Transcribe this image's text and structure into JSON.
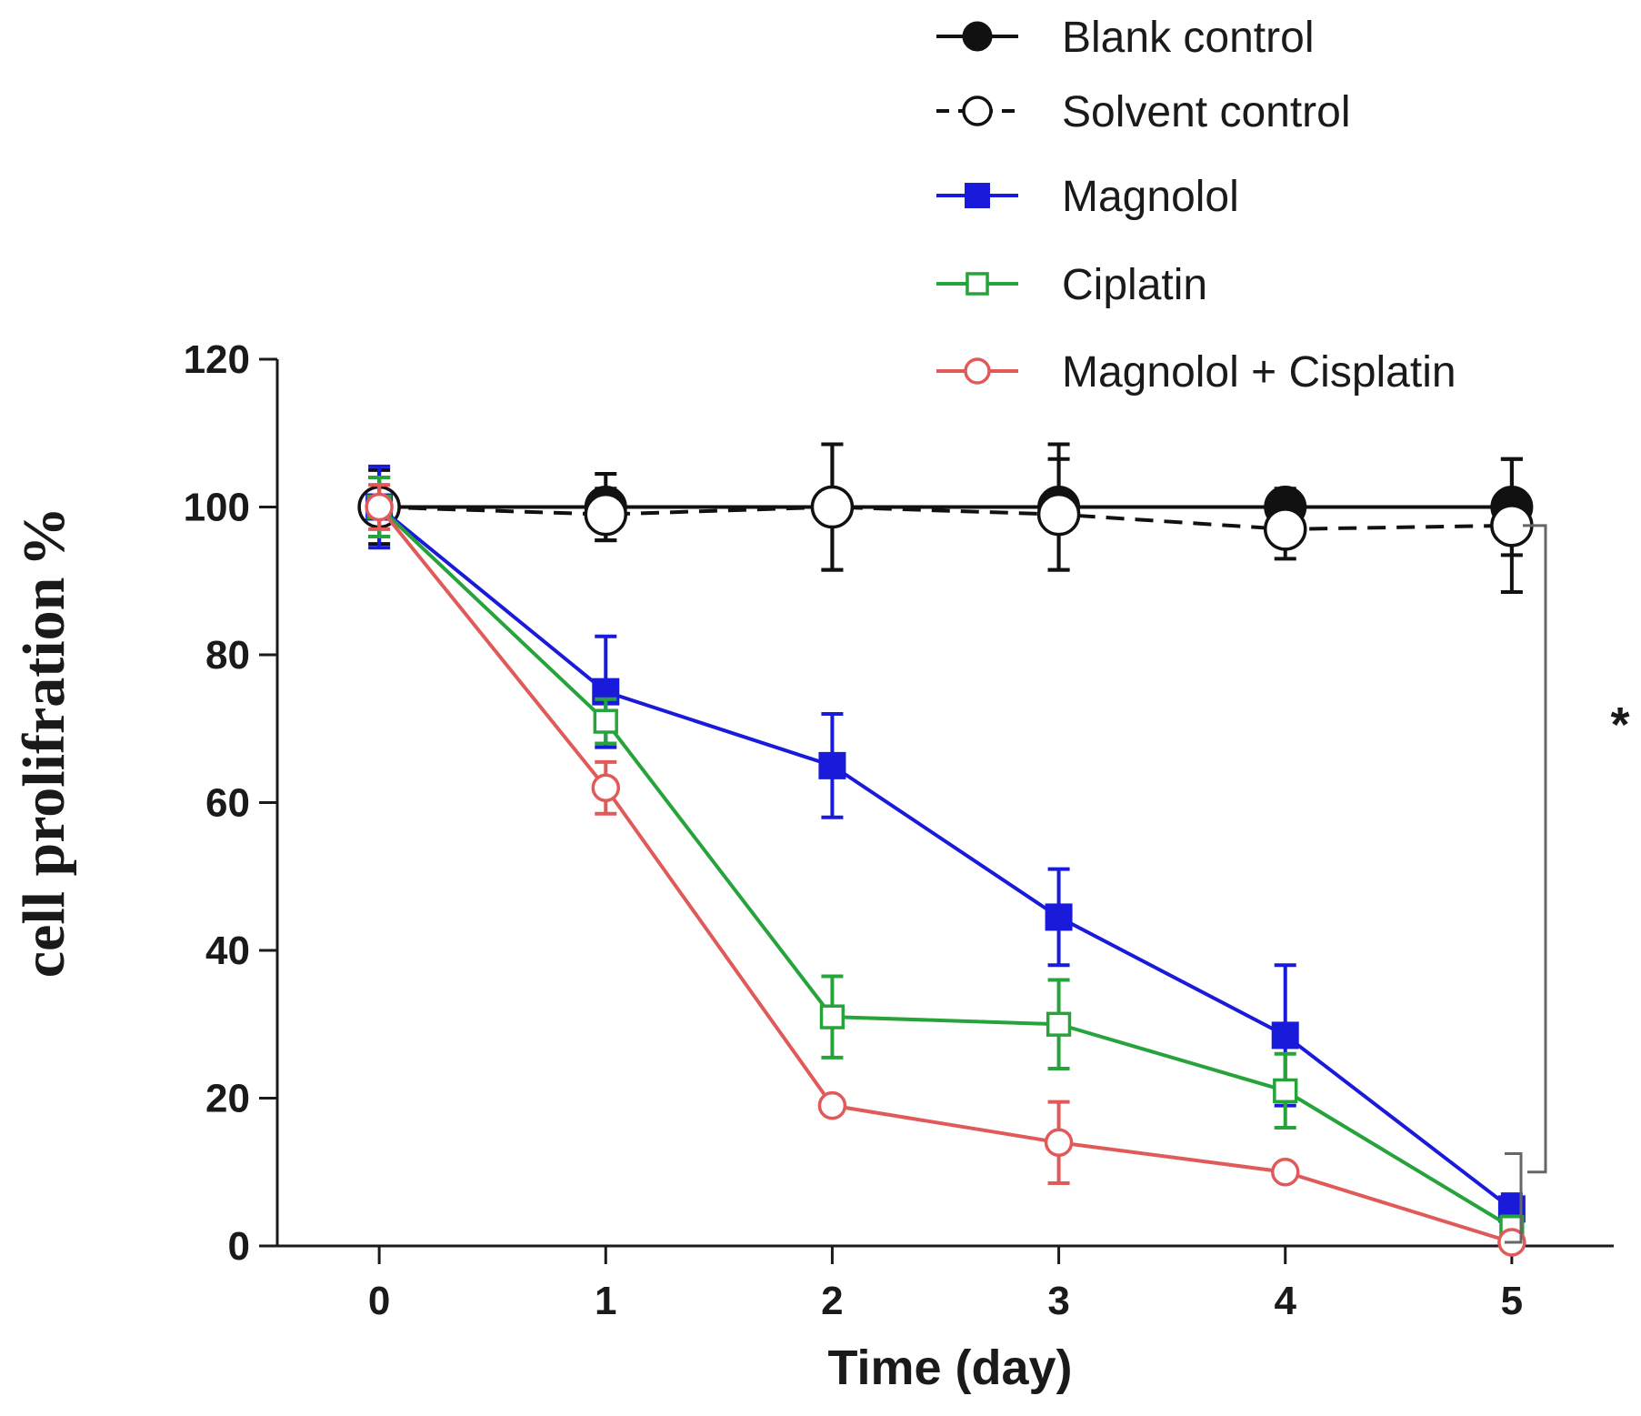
{
  "chart_data": {
    "type": "line",
    "title": "",
    "xlabel": "Time (day)",
    "ylabel_unit": "%",
    "ylabel": "cell prolifration",
    "xlim": [
      -0.45,
      5.45
    ],
    "ylim": [
      0,
      120
    ],
    "x": [
      0,
      1,
      2,
      3,
      4,
      5
    ],
    "x_ticks": [
      0,
      1,
      2,
      3,
      4,
      5
    ],
    "y_ticks": [
      0,
      20,
      40,
      60,
      80,
      100,
      120
    ],
    "grid": false,
    "legend_position": "top-right",
    "significance_label": "*",
    "series": [
      {
        "name": "Blank control",
        "color": "#111111",
        "marker": "filled-circle",
        "dashed": false,
        "values": [
          100,
          100,
          100,
          100,
          100,
          100
        ],
        "errors": [
          5,
          4.5,
          8.5,
          8.5,
          2.5,
          6.5
        ]
      },
      {
        "name": "Solvent control",
        "color": "#111111",
        "marker": "open-circle",
        "dashed": true,
        "values": [
          100,
          99,
          100,
          99,
          97,
          97.5
        ],
        "errors": [
          4,
          3.5,
          8.5,
          7.5,
          4,
          9
        ]
      },
      {
        "name": "Magnolol",
        "color": "#1a1adb",
        "marker": "filled-square",
        "dashed": false,
        "values": [
          100,
          75,
          65,
          44.5,
          28.5,
          5
        ],
        "errors": [
          5.5,
          7.5,
          7,
          6.5,
          9.5,
          2
        ]
      },
      {
        "name": "Ciplatin",
        "color": "#27a33b",
        "marker": "open-square",
        "dashed": false,
        "values": [
          100,
          71,
          31,
          30,
          21,
          2.5
        ],
        "errors": [
          4,
          3,
          5.5,
          6,
          5,
          1.5
        ]
      },
      {
        "name": "Magnolol + Cisplatin",
        "color": "#e05a5a",
        "marker": "open-circle",
        "dashed": false,
        "values": [
          100,
          62,
          19,
          14,
          10,
          0.5
        ],
        "errors": [
          3,
          3.5,
          1,
          5.5,
          1,
          1
        ]
      }
    ]
  }
}
